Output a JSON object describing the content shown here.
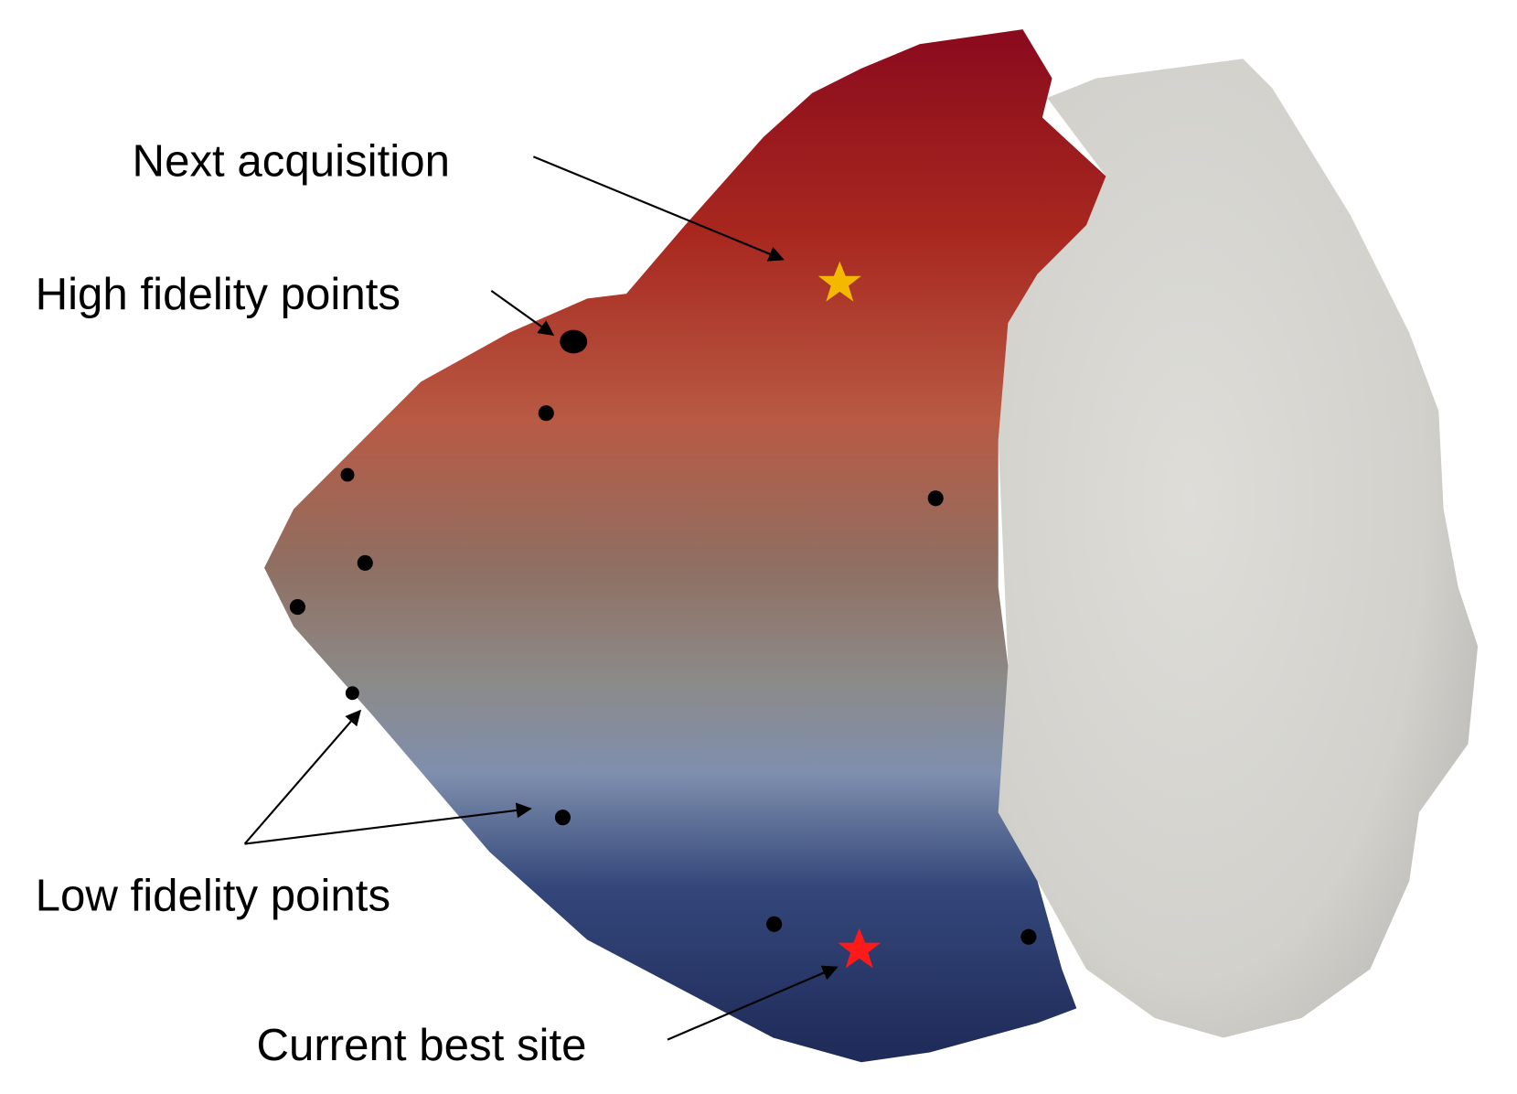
{
  "annotations": {
    "next_acquisition": "Next acquisition",
    "high_fidelity": "High fidelity points",
    "low_fidelity": "Low fidelity points",
    "current_best": "Current best site"
  }
}
